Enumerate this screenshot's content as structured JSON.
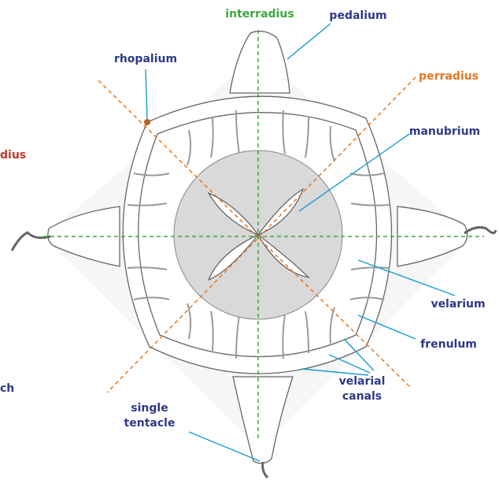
{
  "labels": {
    "interradius": "interradius",
    "pedalium": "pedalium",
    "rhopalium": "rhopalium",
    "perradius": "perradius",
    "adradius_cut": "dius",
    "manubrium": "manubrium",
    "velarium": "velarium",
    "frenulum": "frenulum",
    "velarial_canals": [
      "velarial",
      "canals"
    ],
    "single_tentacle": [
      "single",
      "tentacle"
    ],
    "cut_bottom": "ch"
  }
}
